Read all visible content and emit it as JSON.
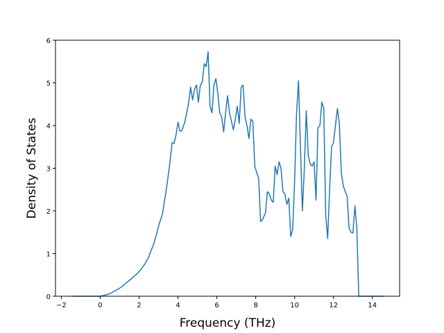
{
  "chart_data": {
    "type": "line",
    "xlabel": "Frequency (THz)",
    "ylabel": "Density of States",
    "xlim": [
      -2.3,
      15.4
    ],
    "ylim": [
      0,
      6
    ],
    "xticks": [
      -2,
      0,
      2,
      4,
      6,
      8,
      10,
      12,
      14
    ],
    "yticks": [
      0,
      1,
      2,
      3,
      4,
      5,
      6
    ],
    "xtick_labels": [
      "−2",
      "0",
      "2",
      "4",
      "6",
      "8",
      "10",
      "12",
      "14"
    ],
    "ytick_labels": [
      "0",
      "1",
      "2",
      "3",
      "4",
      "5",
      "6"
    ],
    "grid": false,
    "legend": "none",
    "line_color": "#1f77b4",
    "series": [
      {
        "x": [
          -1.4,
          -0.5,
          0.0,
          0.3,
          0.5,
          0.7,
          0.9,
          1.1,
          1.3,
          1.5,
          1.7,
          1.9,
          2.1,
          2.3,
          2.5,
          2.6,
          2.75,
          2.85,
          2.95,
          3.05,
          3.2,
          3.4,
          3.55,
          3.7,
          3.8,
          3.9,
          4.0,
          4.1,
          4.2,
          4.35,
          4.45,
          4.55,
          4.65,
          4.75,
          4.85,
          4.95,
          5.05,
          5.15,
          5.25,
          5.35,
          5.45,
          5.55,
          5.65,
          5.75,
          5.85,
          5.95,
          6.05,
          6.15,
          6.25,
          6.35,
          6.45,
          6.55,
          6.65,
          6.75,
          6.85,
          6.95,
          7.05,
          7.15,
          7.25,
          7.35,
          7.45,
          7.55,
          7.65,
          7.75,
          7.85,
          7.95,
          8.05,
          8.15,
          8.25,
          8.35,
          8.5,
          8.6,
          8.7,
          8.8,
          8.9,
          9.0,
          9.1,
          9.2,
          9.3,
          9.4,
          9.5,
          9.6,
          9.7,
          9.8,
          9.9,
          10.0,
          10.1,
          10.2,
          10.3,
          10.4,
          10.5,
          10.6,
          10.7,
          10.8,
          10.9,
          11.0,
          11.1,
          11.2,
          11.3,
          11.4,
          11.5,
          11.6,
          11.7,
          11.8,
          11.9,
          12.0,
          12.1,
          12.2,
          12.3,
          12.4,
          12.5,
          12.6,
          12.7,
          12.8,
          12.9,
          13.0,
          13.1,
          13.2,
          13.3,
          13.4,
          13.6,
          14.0,
          14.6
        ],
        "y": [
          0.0,
          0.0,
          0.0,
          0.03,
          0.06,
          0.11,
          0.16,
          0.22,
          0.3,
          0.37,
          0.45,
          0.53,
          0.63,
          0.76,
          0.92,
          1.05,
          1.22,
          1.38,
          1.55,
          1.72,
          1.92,
          2.5,
          3.0,
          3.6,
          3.58,
          3.78,
          4.08,
          3.87,
          3.88,
          4.08,
          4.3,
          4.55,
          4.9,
          4.6,
          4.85,
          4.95,
          4.55,
          4.95,
          5.02,
          5.45,
          5.38,
          5.73,
          4.45,
          4.3,
          4.95,
          5.1,
          4.75,
          4.3,
          4.2,
          3.85,
          4.3,
          4.7,
          4.3,
          4.1,
          3.9,
          4.15,
          4.45,
          4.05,
          4.9,
          4.95,
          4.2,
          4.0,
          3.7,
          4.15,
          4.1,
          3.05,
          2.9,
          2.75,
          1.75,
          1.8,
          1.95,
          2.45,
          2.4,
          2.25,
          2.2,
          3.05,
          2.85,
          3.15,
          3.0,
          2.45,
          2.4,
          2.15,
          2.3,
          1.4,
          1.55,
          2.7,
          4.3,
          5.05,
          3.5,
          2.0,
          3.0,
          4.35,
          3.3,
          3.1,
          3.05,
          3.15,
          2.25,
          3.95,
          4.0,
          4.55,
          4.4,
          1.9,
          1.35,
          2.5,
          3.5,
          3.6,
          4.0,
          4.4,
          4.05,
          2.9,
          2.6,
          2.45,
          2.35,
          1.6,
          1.5,
          1.48,
          2.12,
          1.6,
          0.0,
          0.0,
          0.0,
          0.0,
          0.0
        ]
      }
    ]
  }
}
